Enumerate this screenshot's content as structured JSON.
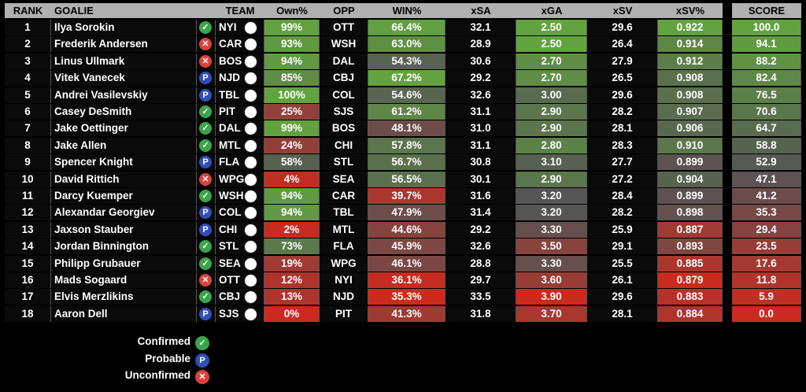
{
  "chart_data": {
    "type": "table",
    "columns": [
      "RANK",
      "GOALIE",
      "",
      "TEAM",
      "Own%",
      "OPP",
      "WIN%",
      "xSA",
      "xGA",
      "xSV",
      "xSV%",
      "SCORE"
    ],
    "rows": [
      {
        "rank": "1",
        "goalie": "Ilya Sorokin",
        "status": "confirmed",
        "team": "NYI",
        "own": "99%",
        "opp": "OTT",
        "win": "66.4%",
        "xsa": "32.1",
        "xga": "2.50",
        "xsv": "29.6",
        "xsvp": "0.922",
        "score": "100.0"
      },
      {
        "rank": "2",
        "goalie": "Frederik Andersen",
        "status": "unconfirmed",
        "team": "CAR",
        "own": "93%",
        "opp": "WSH",
        "win": "63.0%",
        "xsa": "28.9",
        "xga": "2.50",
        "xsv": "26.4",
        "xsvp": "0.914",
        "score": "94.1"
      },
      {
        "rank": "3",
        "goalie": "Linus Ullmark",
        "status": "unconfirmed",
        "team": "BOS",
        "own": "94%",
        "opp": "DAL",
        "win": "54.3%",
        "xsa": "30.6",
        "xga": "2.70",
        "xsv": "27.9",
        "xsvp": "0.912",
        "score": "88.2"
      },
      {
        "rank": "4",
        "goalie": "Vitek Vanecek",
        "status": "probable",
        "team": "NJD",
        "own": "85%",
        "opp": "CBJ",
        "win": "67.2%",
        "xsa": "29.2",
        "xga": "2.70",
        "xsv": "26.5",
        "xsvp": "0.908",
        "score": "82.4"
      },
      {
        "rank": "5",
        "goalie": "Andrei Vasilevskiy",
        "status": "probable",
        "team": "TBL",
        "own": "100%",
        "opp": "COL",
        "win": "54.6%",
        "xsa": "32.6",
        "xga": "3.00",
        "xsv": "29.6",
        "xsvp": "0.908",
        "score": "76.5"
      },
      {
        "rank": "6",
        "goalie": "Casey DeSmith",
        "status": "confirmed",
        "team": "PIT",
        "own": "25%",
        "opp": "SJS",
        "win": "61.2%",
        "xsa": "31.1",
        "xga": "2.90",
        "xsv": "28.2",
        "xsvp": "0.907",
        "score": "70.6"
      },
      {
        "rank": "7",
        "goalie": "Jake Oettinger",
        "status": "confirmed",
        "team": "DAL",
        "own": "99%",
        "opp": "BOS",
        "win": "48.1%",
        "xsa": "31.0",
        "xga": "2.90",
        "xsv": "28.1",
        "xsvp": "0.906",
        "score": "64.7"
      },
      {
        "rank": "8",
        "goalie": "Jake Allen",
        "status": "confirmed",
        "team": "MTL",
        "own": "24%",
        "opp": "CHI",
        "win": "57.8%",
        "xsa": "31.1",
        "xga": "2.80",
        "xsv": "28.3",
        "xsvp": "0.910",
        "score": "58.8"
      },
      {
        "rank": "9",
        "goalie": "Spencer Knight",
        "status": "probable",
        "team": "FLA",
        "own": "58%",
        "opp": "STL",
        "win": "56.7%",
        "xsa": "30.8",
        "xga": "3.10",
        "xsv": "27.7",
        "xsvp": "0.899",
        "score": "52.9"
      },
      {
        "rank": "10",
        "goalie": "David Rittich",
        "status": "unconfirmed",
        "team": "WPG",
        "own": "4%",
        "opp": "SEA",
        "win": "56.5%",
        "xsa": "30.1",
        "xga": "2.90",
        "xsv": "27.2",
        "xsvp": "0.904",
        "score": "47.1"
      },
      {
        "rank": "11",
        "goalie": "Darcy Kuemper",
        "status": "confirmed",
        "team": "WSH",
        "own": "94%",
        "opp": "CAR",
        "win": "39.7%",
        "xsa": "31.6",
        "xga": "3.20",
        "xsv": "28.4",
        "xsvp": "0.899",
        "score": "41.2"
      },
      {
        "rank": "12",
        "goalie": "Alexandar Georgiev",
        "status": "probable",
        "team": "COL",
        "own": "94%",
        "opp": "TBL",
        "win": "47.9%",
        "xsa": "31.4",
        "xga": "3.20",
        "xsv": "28.2",
        "xsvp": "0.898",
        "score": "35.3"
      },
      {
        "rank": "13",
        "goalie": "Jaxson Stauber",
        "status": "probable",
        "team": "CHI",
        "own": "2%",
        "opp": "MTL",
        "win": "44.6%",
        "xsa": "29.2",
        "xga": "3.30",
        "xsv": "25.9",
        "xsvp": "0.887",
        "score": "29.4"
      },
      {
        "rank": "14",
        "goalie": "Jordan Binnington",
        "status": "confirmed",
        "team": "STL",
        "own": "73%",
        "opp": "FLA",
        "win": "45.9%",
        "xsa": "32.6",
        "xga": "3.50",
        "xsv": "29.1",
        "xsvp": "0.893",
        "score": "23.5"
      },
      {
        "rank": "15",
        "goalie": "Philipp Grubauer",
        "status": "confirmed",
        "team": "SEA",
        "own": "19%",
        "opp": "WPG",
        "win": "46.1%",
        "xsa": "28.8",
        "xga": "3.30",
        "xsv": "25.5",
        "xsvp": "0.885",
        "score": "17.6"
      },
      {
        "rank": "16",
        "goalie": "Mads Sogaard",
        "status": "unconfirmed",
        "team": "OTT",
        "own": "12%",
        "opp": "NYI",
        "win": "36.1%",
        "xsa": "29.7",
        "xga": "3.60",
        "xsv": "26.1",
        "xsvp": "0.879",
        "score": "11.8"
      },
      {
        "rank": "17",
        "goalie": "Elvis Merzlikins",
        "status": "confirmed",
        "team": "CBJ",
        "own": "13%",
        "opp": "NJD",
        "win": "35.3%",
        "xsa": "33.5",
        "xga": "3.90",
        "xsv": "29.6",
        "xsvp": "0.883",
        "score": "5.9"
      },
      {
        "rank": "18",
        "goalie": "Aaron Dell",
        "status": "probable",
        "team": "SJS",
        "own": "0%",
        "opp": "PIT",
        "win": "41.3%",
        "xsa": "31.8",
        "xga": "3.70",
        "xsv": "28.1",
        "xsvp": "0.884",
        "score": "0.0"
      }
    ],
    "legend": [
      {
        "label": "Confirmed",
        "status": "confirmed"
      },
      {
        "label": "Probable",
        "status": "probable"
      },
      {
        "label": "Unconfirmed",
        "status": "unconfirmed"
      }
    ],
    "status_glyphs": {
      "confirmed": "✓",
      "probable": "P",
      "unconfirmed": "✕"
    },
    "colors": {
      "good": "#63a33f",
      "bad": "#cc2a1f",
      "neutral": "#555555",
      "header": "#b0b0b0",
      "confirmed": "#3aa64a",
      "probable": "#2f4fb5",
      "unconfirmed": "#d9423a"
    }
  }
}
